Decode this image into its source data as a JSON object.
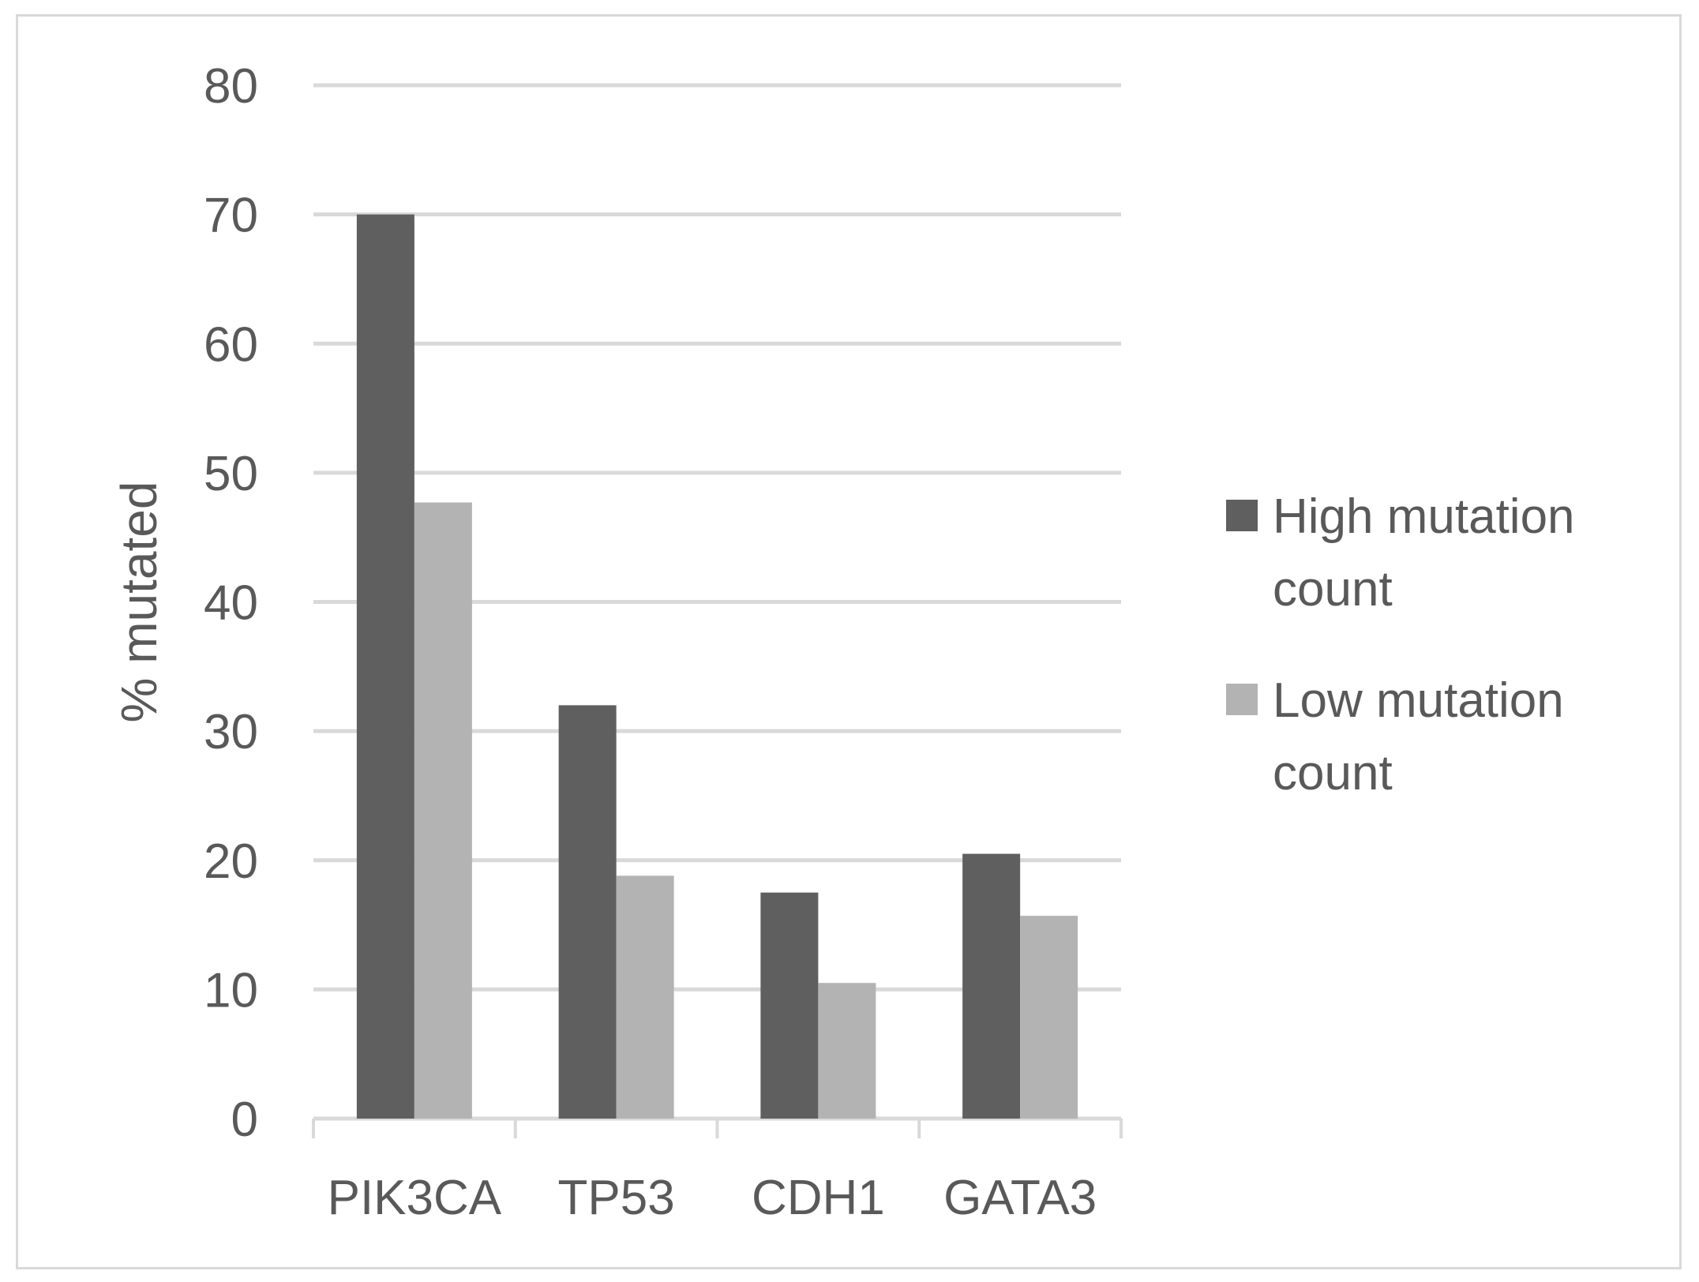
{
  "chart_data": {
    "type": "bar",
    "title": "",
    "xlabel": "",
    "ylabel": "% mutated",
    "categories": [
      "PIK3CA",
      "TP53",
      "CDH1",
      "GATA3"
    ],
    "series": [
      {
        "name": "High mutation count",
        "legend_lines": [
          "High mutation",
          "count"
        ],
        "color": "#5f5f5f",
        "values": [
          70,
          32,
          17.5,
          20.5
        ]
      },
      {
        "name": "Low mutation count",
        "legend_lines": [
          "Low mutation",
          "count"
        ],
        "color": "#b3b3b3",
        "values": [
          47.7,
          18.8,
          10.5,
          15.7
        ]
      }
    ],
    "ylim": [
      0,
      80
    ],
    "yticks": [
      0,
      10,
      20,
      30,
      40,
      50,
      60,
      70,
      80
    ],
    "grid": true,
    "gridline_color": "#d9d9d9",
    "legend_position": "right"
  }
}
